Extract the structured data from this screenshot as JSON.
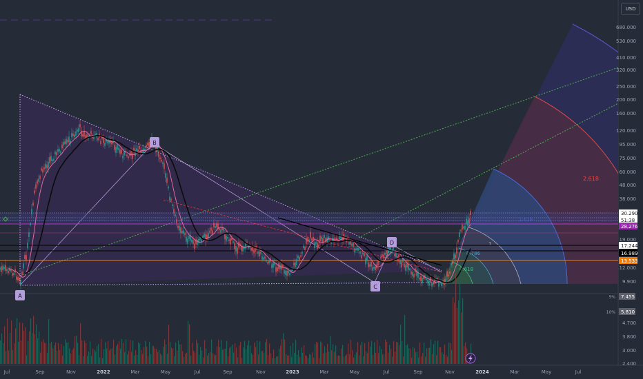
{
  "header": {
    "currency_button": "USD"
  },
  "chart_data": {
    "type": "line",
    "title": "",
    "price_scale": "log",
    "y_ticks": [
      "680.000",
      "530.000",
      "410.000",
      "320.000",
      "250.000",
      "200.000",
      "160.000",
      "120.000",
      "95.000",
      "75.000",
      "60.000",
      "48.000",
      "38.000",
      "30.000",
      "24.000",
      "19.000",
      "15.000",
      "12.000",
      "9.900",
      "4.700",
      "3.800",
      "3.000",
      "2.400"
    ],
    "x_ticks": [
      {
        "label": "Jul",
        "bold": false
      },
      {
        "label": "Sep",
        "bold": false
      },
      {
        "label": "Nov",
        "bold": false
      },
      {
        "label": "2022",
        "bold": true
      },
      {
        "label": "Mar",
        "bold": false
      },
      {
        "label": "May",
        "bold": false
      },
      {
        "label": "Jul",
        "bold": false
      },
      {
        "label": "Sep",
        "bold": false
      },
      {
        "label": "Nov",
        "bold": false
      },
      {
        "label": "2023",
        "bold": true
      },
      {
        "label": "Mar",
        "bold": false
      },
      {
        "label": "May",
        "bold": false
      },
      {
        "label": "Jul",
        "bold": false
      },
      {
        "label": "Sep",
        "bold": false
      },
      {
        "label": "Nov",
        "bold": false
      },
      {
        "label": "2024",
        "bold": true
      },
      {
        "label": "Mar",
        "bold": false
      },
      {
        "label": "May",
        "bold": false
      },
      {
        "label": "Jul",
        "bold": false
      }
    ],
    "price_labels": [
      {
        "text": "30.290",
        "color": "#ffffff",
        "text_color": "#131722"
      },
      {
        "text": "51:38",
        "color": "#ffffff",
        "text_color": "#131722"
      },
      {
        "text": "28.276",
        "color": "#9c27b0",
        "text_color": "#ffffff"
      },
      {
        "text": "17.244",
        "color": "#ffffff",
        "text_color": "#131722"
      },
      {
        "text": "16.989",
        "color": "#000000",
        "text_color": "#ffffff"
      },
      {
        "text": "13.533",
        "color": "#f57c00",
        "text_color": "#ffffff"
      }
    ],
    "indicator_labels": [
      {
        "pct": "5%",
        "value": "7.455"
      },
      {
        "pct": "10%",
        "value": "5.810"
      }
    ],
    "pattern_points": [
      "A",
      "B",
      "C",
      "D"
    ],
    "fib_labels": [
      "2.618",
      "1.618",
      "1",
      "0.786",
      "0.618"
    ]
  }
}
